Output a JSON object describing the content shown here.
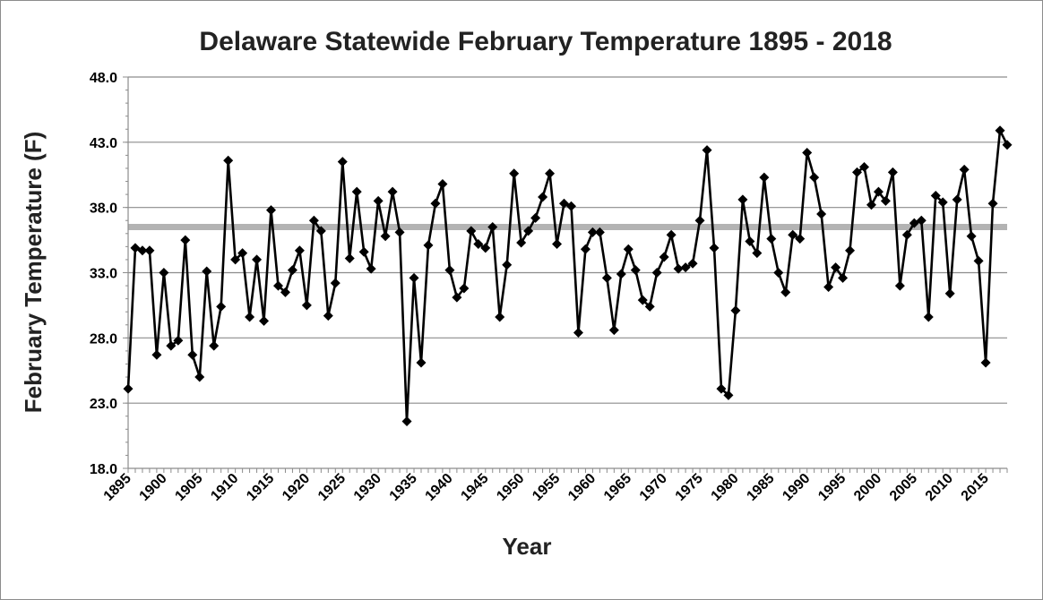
{
  "chart_data": {
    "type": "line",
    "title": "Delaware Statewide February Temperature 1895 - 2018",
    "xlabel": "Year",
    "ylabel": "February Temperature (F)",
    "ylim": [
      18.0,
      48.0
    ],
    "yticks": [
      "18.0",
      "23.0",
      "28.0",
      "33.0",
      "38.0",
      "43.0",
      "48.0"
    ],
    "xlim": [
      1895,
      2018
    ],
    "xticks": [
      "1895",
      "1900",
      "1905",
      "1910",
      "1915",
      "1920",
      "1925",
      "1930",
      "1935",
      "1940",
      "1945",
      "1950",
      "1955",
      "1960",
      "1965",
      "1970",
      "1975",
      "1980",
      "1985",
      "1990",
      "1995",
      "2000",
      "2005",
      "2010",
      "2015"
    ],
    "grid": true,
    "legend": "none",
    "colors": {
      "series": "#000000",
      "average_line": "#b3b3b3",
      "grid": "#8c8c8c"
    },
    "average": 36.5,
    "series": [
      {
        "name": "February Temperature",
        "x": [
          1895,
          1896,
          1897,
          1898,
          1899,
          1900,
          1901,
          1902,
          1903,
          1904,
          1905,
          1906,
          1907,
          1908,
          1909,
          1910,
          1911,
          1912,
          1913,
          1914,
          1915,
          1916,
          1917,
          1918,
          1919,
          1920,
          1921,
          1922,
          1923,
          1924,
          1925,
          1926,
          1927,
          1928,
          1929,
          1930,
          1931,
          1932,
          1933,
          1934,
          1935,
          1936,
          1937,
          1938,
          1939,
          1940,
          1941,
          1942,
          1943,
          1944,
          1945,
          1946,
          1947,
          1948,
          1949,
          1950,
          1951,
          1952,
          1953,
          1954,
          1955,
          1956,
          1957,
          1958,
          1959,
          1960,
          1961,
          1962,
          1963,
          1964,
          1965,
          1966,
          1967,
          1968,
          1969,
          1970,
          1971,
          1972,
          1973,
          1974,
          1975,
          1976,
          1977,
          1978,
          1979,
          1980,
          1981,
          1982,
          1983,
          1984,
          1985,
          1986,
          1987,
          1988,
          1989,
          1990,
          1991,
          1992,
          1993,
          1994,
          1995,
          1996,
          1997,
          1998,
          1999,
          2000,
          2001,
          2002,
          2003,
          2004,
          2005,
          2006,
          2007,
          2008,
          2009,
          2010,
          2011,
          2012,
          2013,
          2014,
          2015,
          2016,
          2017,
          2018
        ],
        "values": [
          24.1,
          34.9,
          34.7,
          34.7,
          26.7,
          33.0,
          27.4,
          27.8,
          35.5,
          26.7,
          25.0,
          33.1,
          27.4,
          30.4,
          41.6,
          34.0,
          34.5,
          29.6,
          34.0,
          29.3,
          37.8,
          32.0,
          31.5,
          33.2,
          34.7,
          30.5,
          37.0,
          36.2,
          29.7,
          32.2,
          41.5,
          34.1,
          39.2,
          34.6,
          33.3,
          38.5,
          35.8,
          39.2,
          36.1,
          21.6,
          32.6,
          26.1,
          35.1,
          38.3,
          39.8,
          33.2,
          31.1,
          31.8,
          36.2,
          35.2,
          34.9,
          36.5,
          29.6,
          33.6,
          40.6,
          35.3,
          36.2,
          37.2,
          38.8,
          40.6,
          35.2,
          38.3,
          38.1,
          28.4,
          34.8,
          36.1,
          36.1,
          32.6,
          28.6,
          32.9,
          34.8,
          33.2,
          30.9,
          30.4,
          33.0,
          34.2,
          35.9,
          33.3,
          33.4,
          33.7,
          37.0,
          42.4,
          34.9,
          24.1,
          23.6,
          30.1,
          38.6,
          35.4,
          34.5,
          40.3,
          35.6,
          33.0,
          31.5,
          35.9,
          35.6,
          42.2,
          40.3,
          37.5,
          31.9,
          33.4,
          32.6,
          34.7,
          40.7,
          41.1,
          38.2,
          39.2,
          38.5,
          40.7,
          32.0,
          35.9,
          36.8,
          37.0,
          29.6,
          38.9,
          38.4,
          31.4,
          38.6,
          40.9,
          35.8,
          33.9,
          26.1,
          38.3,
          43.9,
          42.8
        ]
      }
    ]
  }
}
